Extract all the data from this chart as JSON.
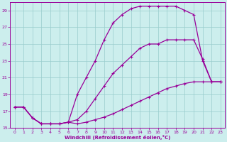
{
  "xlabel": "Windchill (Refroidissement éolien,°C)",
  "bg_color": "#cceeed",
  "line_color": "#990099",
  "grid_color": "#99cccc",
  "xlim": [
    -0.5,
    23.5
  ],
  "ylim": [
    15,
    30
  ],
  "xticks": [
    0,
    1,
    2,
    3,
    4,
    5,
    6,
    7,
    8,
    9,
    10,
    11,
    12,
    13,
    14,
    15,
    16,
    17,
    18,
    19,
    20,
    21,
    22,
    23
  ],
  "yticks": [
    15,
    17,
    19,
    21,
    23,
    25,
    27,
    29
  ],
  "line1_x": [
    0,
    1,
    2,
    3,
    4,
    5,
    6,
    7,
    8,
    9,
    10,
    11,
    12,
    13,
    14,
    15,
    16,
    17,
    18,
    19,
    20,
    21,
    22,
    23
  ],
  "line1_y": [
    17.5,
    17.5,
    16.2,
    15.5,
    15.5,
    15.5,
    15.7,
    15.5,
    15.7,
    16.0,
    16.3,
    16.7,
    17.2,
    17.7,
    18.2,
    18.7,
    19.2,
    19.7,
    20.0,
    20.3,
    20.5,
    20.5,
    20.5,
    20.5
  ],
  "line2_x": [
    0,
    1,
    2,
    3,
    4,
    5,
    6,
    7,
    8,
    9,
    10,
    11,
    12,
    13,
    14,
    15,
    16,
    17,
    18,
    19,
    20,
    21,
    22,
    23
  ],
  "line2_y": [
    17.5,
    17.5,
    16.2,
    15.5,
    15.5,
    15.5,
    15.7,
    16.0,
    17.0,
    18.5,
    20.0,
    21.5,
    22.5,
    23.5,
    24.5,
    25.0,
    25.0,
    25.5,
    25.5,
    25.5,
    25.5,
    23.2,
    20.5,
    20.5
  ],
  "line3_x": [
    0,
    1,
    2,
    3,
    4,
    5,
    6,
    7,
    8,
    9,
    10,
    11,
    12,
    13,
    14,
    15,
    16,
    17,
    18,
    19,
    20,
    21,
    22,
    23
  ],
  "line3_y": [
    17.5,
    17.5,
    16.2,
    15.5,
    15.5,
    15.5,
    15.7,
    19.0,
    21.0,
    23.0,
    25.5,
    27.5,
    28.5,
    29.2,
    29.5,
    29.5,
    29.5,
    29.5,
    29.5,
    29.0,
    28.5,
    23.0,
    20.5,
    20.5
  ]
}
